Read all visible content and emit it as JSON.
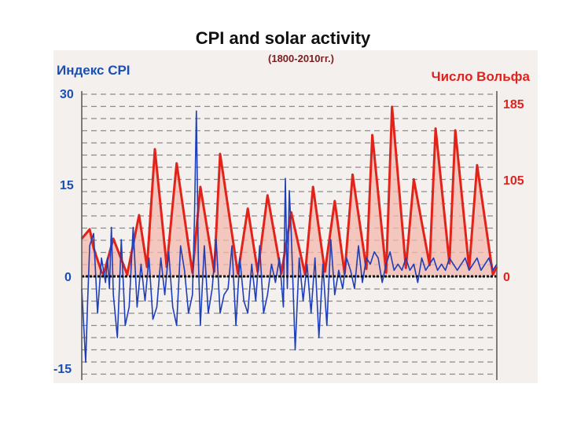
{
  "slide": {
    "title": "CPI and solar activity"
  },
  "chart_data": {
    "type": "line",
    "title": "",
    "subtitle": "(1800-2010гг.)",
    "x_range": [
      1800,
      2010
    ],
    "ylabel_left": "Индекс CPI",
    "ylabel_right": "Число Вольфа",
    "yticks_left": [
      "30",
      "15",
      "0",
      "-15"
    ],
    "yticks_right": [
      "185",
      "105",
      "0"
    ],
    "ylim_left": [
      -15,
      30
    ],
    "ylim_right": [
      -92.5,
      185
    ],
    "grid": "horizontal dashed",
    "colors": {
      "cpi": "#1f3fb8",
      "wolf": "#e2231a",
      "wolf_fill": "#f3b8ae",
      "zero": "#111111"
    },
    "series": [
      {
        "axis": "right",
        "x": [
          1800,
          1804,
          1806,
          1810,
          1811,
          1816,
          1823,
          1829,
          1833,
          1837,
          1843,
          1848,
          1856,
          1860,
          1867,
          1870,
          1879,
          1884,
          1889,
          1894,
          1901,
          1906,
          1913,
          1917,
          1923,
          1928,
          1933,
          1937,
          1944,
          1947,
          1954,
          1957,
          1964,
          1968,
          1976,
          1979,
          1986,
          1989,
          1996,
          2000,
          2008,
          2010
        ],
        "y": [
          40,
          50,
          30,
          5,
          2,
          40,
          2,
          65,
          10,
          135,
          10,
          120,
          4,
          95,
          5,
          130,
          3,
          72,
          5,
          86,
          3,
          68,
          2,
          95,
          5,
          80,
          3,
          108,
          8,
          150,
          4,
          180,
          9,
          103,
          12,
          157,
          14,
          155,
          8,
          118,
          2,
          10
        ]
      },
      {
        "axis": "left",
        "x": [
          1800,
          1802,
          1803,
          1804,
          1806,
          1808,
          1810,
          1812,
          1813,
          1814,
          1815,
          1816,
          1818,
          1820,
          1822,
          1824,
          1826,
          1828,
          1830,
          1832,
          1834,
          1836,
          1838,
          1840,
          1842,
          1844,
          1846,
          1848,
          1850,
          1852,
          1854,
          1856,
          1857,
          1858,
          1859,
          1860,
          1862,
          1864,
          1866,
          1868,
          1870,
          1872,
          1874,
          1876,
          1878,
          1880,
          1882,
          1884,
          1886,
          1888,
          1890,
          1892,
          1894,
          1896,
          1898,
          1900,
          1902,
          1903,
          1904,
          1905,
          1906,
          1908,
          1910,
          1912,
          1914,
          1916,
          1918,
          1920,
          1922,
          1924,
          1926,
          1928,
          1930,
          1932,
          1934,
          1936,
          1938,
          1940,
          1942,
          1944,
          1946,
          1948,
          1950,
          1952,
          1954,
          1956,
          1958,
          1960,
          1962,
          1964,
          1966,
          1968,
          1970,
          1972,
          1974,
          1976,
          1978,
          1980,
          1982,
          1984,
          1986,
          1988,
          1990,
          1992,
          1994,
          1996,
          1998,
          2000,
          2002,
          2004,
          2006,
          2008,
          2010
        ],
        "y": [
          -2,
          -14,
          -4,
          5,
          7,
          -6,
          3,
          -1,
          3,
          -2,
          8,
          -3,
          -10,
          6,
          -8,
          -5,
          8,
          -5,
          2,
          -4,
          3,
          -7,
          -5,
          3,
          -3,
          4,
          -5,
          -8,
          5,
          1,
          -6,
          -3,
          9,
          27,
          3,
          -8,
          5,
          -6,
          -2,
          6,
          -6,
          -3,
          -2,
          5,
          -8,
          3,
          -4,
          -6,
          2,
          -4,
          5,
          -6,
          -3,
          2,
          -1,
          3,
          -5,
          16,
          -2,
          14,
          7,
          -12,
          3,
          -4,
          2,
          -6,
          3,
          -10,
          2,
          -8,
          6,
          -3,
          1,
          -2,
          3,
          1,
          -2,
          5,
          -1,
          3,
          2,
          4,
          3,
          -1,
          2,
          4,
          1,
          2,
          1,
          3,
          1,
          2,
          -1,
          3,
          1,
          2,
          3,
          1,
          2,
          1,
          3,
          2,
          1,
          2,
          3,
          1,
          2,
          3,
          1,
          2,
          3,
          1,
          2
        ]
      }
    ]
  }
}
